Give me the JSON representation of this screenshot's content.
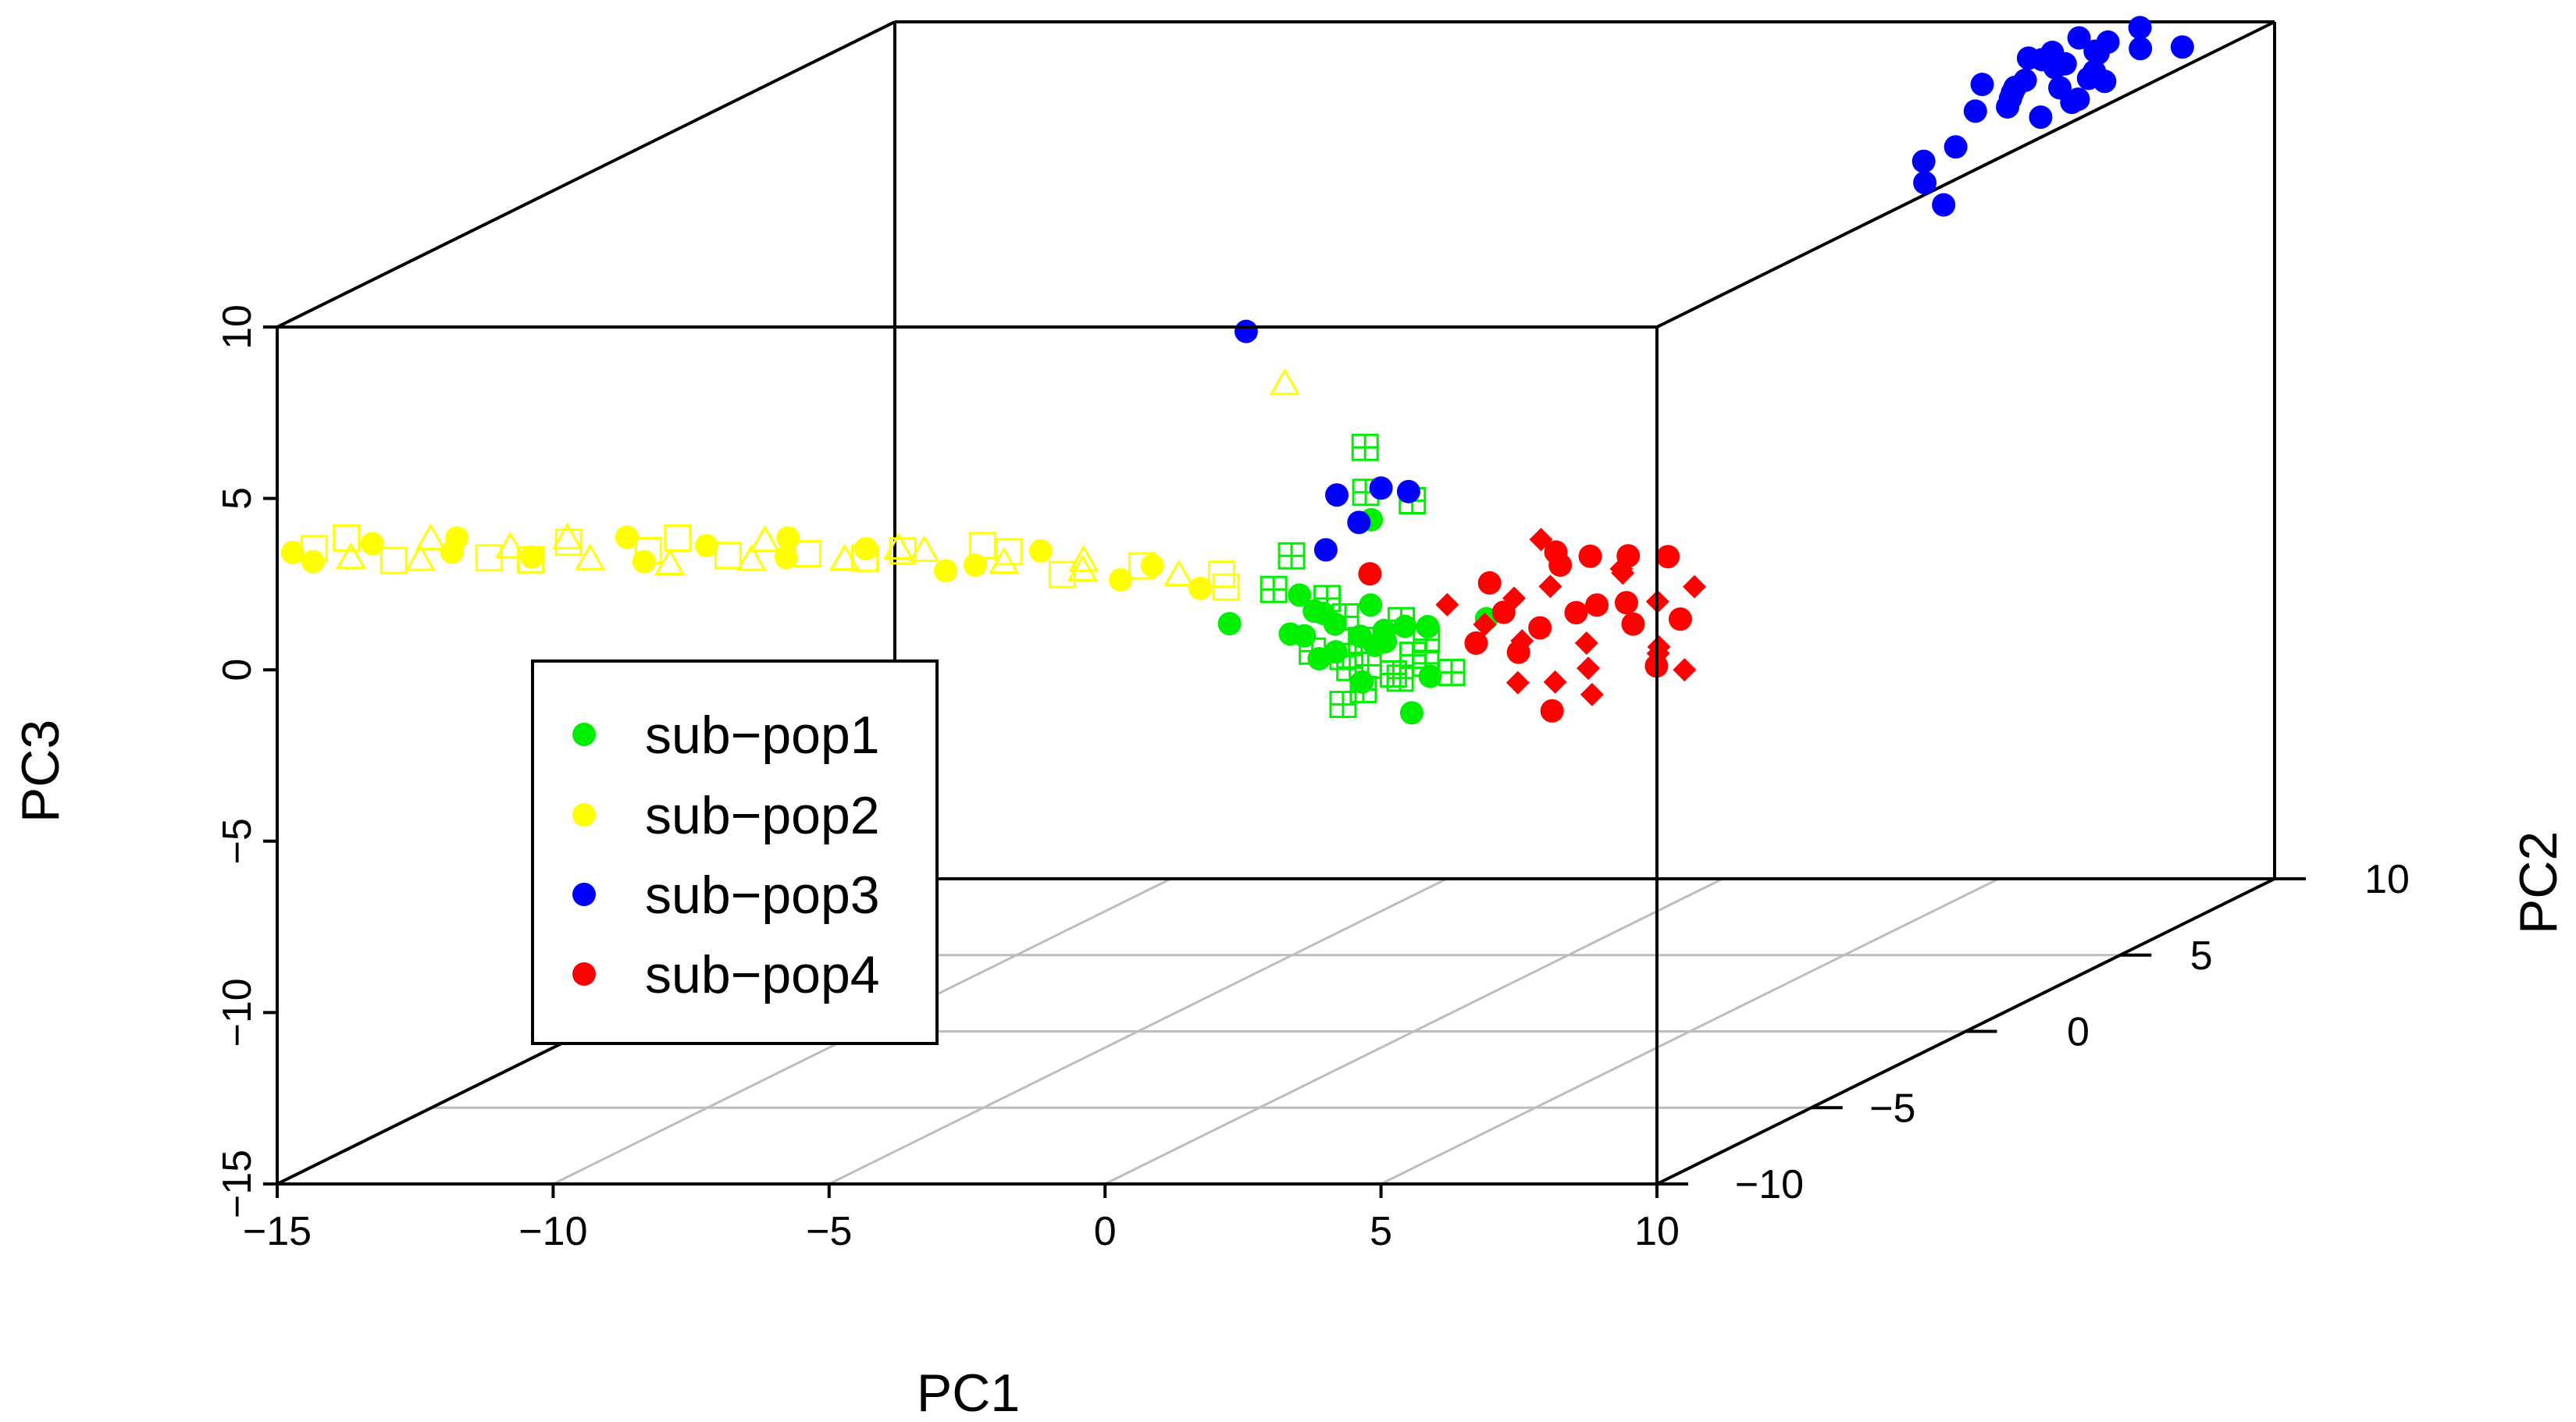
{
  "chart_data": {
    "type": "scatter3d",
    "title": "",
    "xlabel": "PC1",
    "ylabel": "PC2",
    "zlabel": "PC3",
    "xlim": [
      -15,
      10
    ],
    "ylim": [
      -10,
      10
    ],
    "zlim": [
      -15,
      10
    ],
    "x_ticks": [
      "−15",
      "−10",
      "−5",
      "0",
      "5",
      "10"
    ],
    "y_ticks": [
      "−10",
      "−5",
      "0",
      "5",
      "10"
    ],
    "z_ticks": [
      "−15",
      "−10",
      "−5",
      "0",
      "5",
      "10"
    ],
    "grid": "floor",
    "legend_position": "center-left",
    "series": [
      {
        "name": "sub−pop1",
        "color": "#00ee00",
        "marker": "filled-circle+boxed-plus",
        "points": [
          [
            3.5,
            -9.8,
            0.9
          ],
          [
            3.7,
            -9.9,
            0.5
          ],
          [
            4.0,
            -9.7,
            1.2
          ],
          [
            4.2,
            -9.8,
            0.3
          ],
          [
            4.4,
            -9.6,
            0.8
          ],
          [
            4.6,
            -9.7,
            0.0
          ],
          [
            4.8,
            -9.5,
            0.6
          ],
          [
            5.0,
            -9.6,
            -0.3
          ],
          [
            5.1,
            -9.4,
            1.0
          ],
          [
            5.3,
            -9.5,
            0.2
          ],
          [
            5.5,
            -9.3,
            -0.5
          ],
          [
            5.6,
            -9.6,
            0.7
          ],
          [
            3.9,
            -9.9,
            1.6
          ],
          [
            4.3,
            -9.9,
            1.5
          ],
          [
            4.7,
            -9.8,
            1.8
          ],
          [
            5.2,
            -9.7,
            1.3
          ],
          [
            3.6,
            -9.5,
            0.1
          ],
          [
            4.1,
            -9.4,
            -0.2
          ],
          [
            4.5,
            -9.3,
            0.4
          ],
          [
            4.9,
            -9.2,
            -0.6
          ],
          [
            5.4,
            -9.2,
            0.9
          ],
          [
            3.8,
            -9.6,
            1.9
          ],
          [
            4.6,
            -9.9,
            -0.4
          ],
          [
            5.7,
            -9.8,
            0.1
          ],
          [
            3.3,
            -9.6,
            2.0
          ],
          [
            3.0,
            -9.9,
            2.3
          ],
          [
            3.4,
            -9.3,
            1.4
          ],
          [
            4.4,
            -9.5,
            -0.8
          ],
          [
            5.0,
            -9.9,
            1.1
          ],
          [
            4.2,
            -9.2,
            0.5
          ],
          [
            2.2,
            -9.9,
            1.3
          ],
          [
            3.1,
            -9.5,
            3.1
          ],
          [
            3.3,
            -9.9,
            1.0
          ],
          [
            4.6,
            -9.8,
            6.4
          ],
          [
            5.5,
            -9.9,
            -1.3
          ],
          [
            6.0,
            -9.5,
            -0.3
          ],
          [
            6.8,
            -9.8,
            1.4
          ],
          [
            4.5,
            -9.6,
            5.0
          ],
          [
            4.6,
            -9.6,
            4.2
          ],
          [
            5.4,
            -9.7,
            4.8
          ],
          [
            3.9,
            -9.5,
            0.3
          ],
          [
            4.2,
            -9.8,
            -1.1
          ]
        ]
      },
      {
        "name": "sub−pop2",
        "color": "#ffff00",
        "marker": "filled-circle+open-triangle/square",
        "points": [
          [
            -15.0,
            -9.5,
            3.2
          ],
          [
            -14.5,
            -9.7,
            3.4
          ],
          [
            -14.0,
            -9.4,
            3.0
          ],
          [
            -13.5,
            -9.6,
            3.5
          ],
          [
            -13.0,
            -9.8,
            3.1
          ],
          [
            -12.5,
            -9.5,
            3.6
          ],
          [
            -12.0,
            -9.7,
            3.3
          ],
          [
            -11.5,
            -9.4,
            3.0
          ],
          [
            -11.0,
            -9.6,
            3.4
          ],
          [
            -10.5,
            -9.8,
            3.2
          ],
          [
            -10.0,
            -9.5,
            3.5
          ],
          [
            -9.5,
            -9.7,
            3.1
          ],
          [
            -9.0,
            -9.4,
            3.6
          ],
          [
            -8.5,
            -9.6,
            3.3
          ],
          [
            -8.0,
            -9.8,
            3.0
          ],
          [
            -7.5,
            -9.5,
            3.4
          ],
          [
            -7.0,
            -9.7,
            3.2
          ],
          [
            -6.5,
            -9.4,
            3.5
          ],
          [
            -6.0,
            -9.6,
            3.1
          ],
          [
            -5.5,
            -9.8,
            3.3
          ],
          [
            -5.0,
            -9.5,
            3.0
          ],
          [
            -4.5,
            -9.7,
            3.4
          ],
          [
            -4.0,
            -9.4,
            3.2
          ],
          [
            -3.5,
            -9.6,
            3.3
          ],
          [
            -3.0,
            -9.8,
            2.8
          ],
          [
            -2.5,
            -9.5,
            3.4
          ],
          [
            -2.0,
            -9.7,
            3.0
          ],
          [
            -1.5,
            -9.4,
            3.2
          ],
          [
            -1.0,
            -9.6,
            2.6
          ],
          [
            -0.5,
            -9.8,
            3.1
          ],
          [
            0.0,
            -9.5,
            2.4
          ],
          [
            0.5,
            -9.7,
            2.9
          ],
          [
            1.0,
            -9.4,
            2.5
          ],
          [
            1.5,
            -9.6,
            2.2
          ],
          [
            2.0,
            -9.8,
            2.7
          ],
          [
            3.2,
            -9.9,
            8.3
          ],
          [
            -14.8,
            -9.2,
            2.8
          ],
          [
            -13.8,
            -9.9,
            3.8
          ],
          [
            -12.8,
            -9.3,
            2.9
          ],
          [
            -11.8,
            -9.9,
            3.8
          ],
          [
            -10.8,
            -9.3,
            2.9
          ],
          [
            -9.8,
            -9.9,
            3.8
          ],
          [
            -8.8,
            -9.2,
            2.8
          ],
          [
            -7.8,
            -9.9,
            3.8
          ],
          [
            -6.8,
            -9.3,
            2.9
          ],
          [
            -5.8,
            -9.9,
            3.8
          ],
          [
            -4.8,
            -9.2,
            2.9
          ],
          [
            -3.8,
            -9.9,
            3.5
          ],
          [
            -2.8,
            -9.2,
            2.7
          ],
          [
            -1.8,
            -9.9,
            3.4
          ],
          [
            -0.8,
            -9.3,
            2.6
          ],
          [
            0.8,
            -9.9,
            3.0
          ],
          [
            1.8,
            -9.3,
            2.1
          ]
        ]
      },
      {
        "name": "sub−pop3",
        "color": "#0000ff",
        "marker": "filled-circle",
        "points": [
          [
            7.5,
            6.5,
            10.5
          ],
          [
            7.7,
            7.0,
            10.0
          ],
          [
            7.9,
            6.8,
            9.5
          ],
          [
            8.1,
            6.2,
            10.8
          ],
          [
            8.3,
            7.2,
            9.8
          ],
          [
            7.6,
            5.8,
            9.8
          ],
          [
            8.0,
            5.5,
            10.3
          ],
          [
            8.4,
            6.5,
            9.3
          ],
          [
            8.2,
            7.5,
            10.2
          ],
          [
            7.8,
            7.6,
            10.6
          ],
          [
            7.4,
            6.0,
            9.3
          ],
          [
            8.5,
            5.9,
            10.6
          ],
          [
            7.3,
            7.3,
            10.1
          ],
          [
            8.6,
            7.0,
            9.6
          ],
          [
            7.9,
            5.2,
            9.9
          ],
          [
            8.1,
            8.0,
            10.3
          ],
          [
            7.5,
            5.0,
            10.4
          ],
          [
            8.7,
            6.3,
            10.0
          ],
          [
            7.2,
            6.6,
            9.6
          ],
          [
            8.0,
            6.0,
            9.0
          ],
          [
            7.7,
            8.3,
            9.9
          ],
          [
            8.4,
            8.5,
            10.5
          ],
          [
            8.8,
            7.8,
            10.2
          ],
          [
            9.0,
            8.8,
            9.8
          ],
          [
            8.9,
            5.4,
            9.7
          ],
          [
            7.6,
            4.6,
            9.8
          ],
          [
            7.3,
            4.5,
            8.8
          ],
          [
            7.0,
            4.0,
            8.6
          ],
          [
            7.3,
            3.5,
            8.2
          ],
          [
            8.2,
            2.5,
            8.0
          ],
          [
            -0.8,
            -4.0,
            7.2
          ],
          [
            4.2,
            -10.0,
            5.1
          ],
          [
            4.6,
            -10.0,
            4.3
          ],
          [
            4.0,
            -10.0,
            3.5
          ],
          [
            5.0,
            -10.0,
            5.3
          ],
          [
            5.5,
            -10.0,
            5.2
          ]
        ]
      },
      {
        "name": "sub−pop4",
        "color": "#ff0000",
        "marker": "filled-circle+filled-diamond",
        "points": [
          [
            7.0,
            -9.6,
            1.5
          ],
          [
            7.3,
            -9.8,
            2.0
          ],
          [
            7.6,
            -9.5,
            1.0
          ],
          [
            7.9,
            -9.7,
            2.3
          ],
          [
            8.2,
            -9.4,
            1.4
          ],
          [
            8.5,
            -9.6,
            0.6
          ],
          [
            8.8,
            -9.8,
            1.8
          ],
          [
            9.1,
            -9.5,
            2.6
          ],
          [
            9.4,
            -9.7,
            1.2
          ],
          [
            9.7,
            -9.4,
            0.4
          ],
          [
            7.1,
            -9.3,
            0.2
          ],
          [
            7.5,
            -9.9,
            0.8
          ],
          [
            7.8,
            -9.2,
            2.7
          ],
          [
            8.1,
            -9.9,
            -0.4
          ],
          [
            8.4,
            -9.3,
            3.0
          ],
          [
            8.7,
            -9.9,
            0.0
          ],
          [
            9.0,
            -9.2,
            1.6
          ],
          [
            9.3,
            -9.9,
            2.9
          ],
          [
            9.6,
            -9.3,
            -0.2
          ],
          [
            9.9,
            -9.8,
            1.9
          ],
          [
            6.8,
            -9.7,
            2.4
          ],
          [
            6.6,
            -9.5,
            1.1
          ],
          [
            10.2,
            -9.6,
            1.3
          ],
          [
            10.4,
            -9.5,
            2.2
          ],
          [
            6.5,
            -9.6,
            0.6
          ],
          [
            7.2,
            -9.5,
            -0.6
          ],
          [
            8.0,
            -9.7,
            3.3
          ],
          [
            8.6,
            -9.6,
            -0.9
          ],
          [
            9.2,
            -9.5,
            3.1
          ],
          [
            9.8,
            -9.6,
            0.3
          ],
          [
            4.8,
            -10.0,
            2.8
          ],
          [
            7.9,
            -10.0,
            3.8
          ],
          [
            8.1,
            -10.0,
            -1.2
          ],
          [
            10.5,
            -10.0,
            0.0
          ],
          [
            10.2,
            -10.0,
            3.3
          ],
          [
            6.2,
            -10.0,
            1.9
          ]
        ]
      }
    ]
  }
}
